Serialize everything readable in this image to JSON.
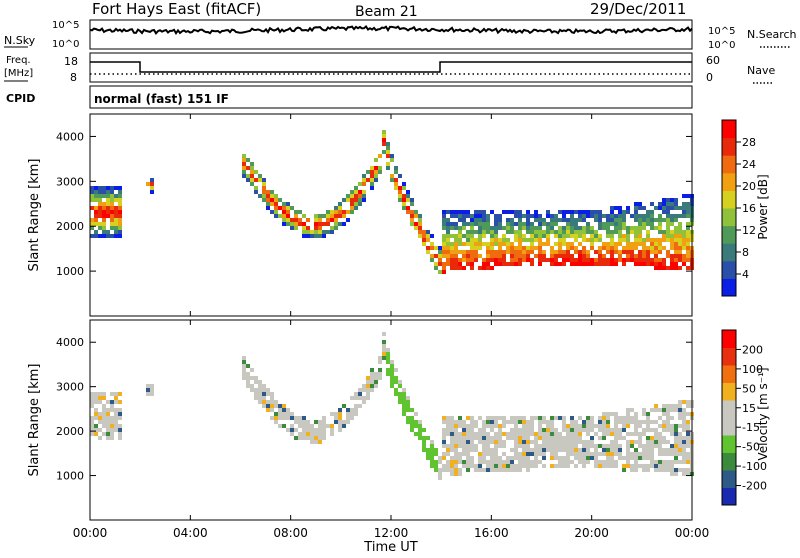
{
  "header": {
    "title": "Fort Hays East (fitACF)",
    "beam": "Beam 21",
    "date": "29/Dec/2011"
  },
  "status_panels": {
    "nsky_label": "N.Sky",
    "nsky_ticks": [
      "10^5",
      "10^0"
    ],
    "nsearch_label": "N.Search",
    "nsearch_ticks": [
      "10^5",
      "10^0"
    ],
    "freq_label_line1": "Freq.",
    "freq_label_line2": "[MHz]",
    "freq_ticks": [
      "18",
      "8"
    ],
    "nave_label": "Nave",
    "nave_ticks": [
      "60",
      "0"
    ],
    "cpid_label": "CPID",
    "cpid_text": "normal (fast) 151 IF"
  },
  "colors": {
    "power_scale": [
      "#0a1ee6",
      "#2a4fa8",
      "#3b7a7a",
      "#4f9a58",
      "#8fc23a",
      "#d6d020",
      "#f0a010",
      "#f06a10",
      "#e82a0a",
      "#ff0000"
    ],
    "velocity_scale": [
      "#1a2ab0",
      "#2e5a88",
      "#3c8a3c",
      "#60c430",
      "#c8c8c0",
      "#c8c8c0",
      "#f0b020",
      "#f07010",
      "#e83010",
      "#ff0000"
    ],
    "velocity_grey": "#c8c8c0"
  },
  "chart_data": [
    {
      "type": "heatmap",
      "name": "power",
      "ylabel": "Slant Range [km]",
      "yticks": [
        "1000",
        "2000",
        "3000",
        "4000"
      ],
      "ylim": [
        0,
        4500
      ],
      "xlim_hours": [
        0,
        24
      ],
      "colorbar_label": "Power [dB]",
      "colorbar_ticks": [
        "4",
        "8",
        "12",
        "16",
        "20",
        "24",
        "28"
      ],
      "colorbar_range": [
        0,
        32
      ]
    },
    {
      "type": "heatmap",
      "name": "velocity",
      "ylabel": "Slant Range [km]",
      "yticks": [
        "1000",
        "2000",
        "3000",
        "4000"
      ],
      "ylim": [
        0,
        4500
      ],
      "xlim_hours": [
        0,
        24
      ],
      "colorbar_label": "Velocity [m s⁻¹]",
      "colorbar_ticks": [
        "-200",
        "-100",
        "-50",
        "-15",
        "15",
        "50",
        "100",
        "200"
      ]
    }
  ],
  "xaxis": {
    "ticks": [
      "00:00",
      "04:00",
      "08:00",
      "12:00",
      "16:00",
      "20:00",
      "00:00"
    ],
    "label": "Time UT"
  }
}
